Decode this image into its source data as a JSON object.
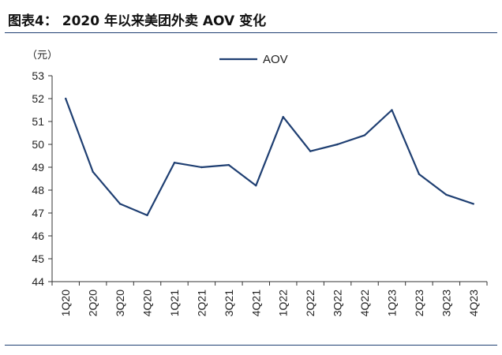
{
  "header": {
    "title": "图表4： 2020 年以来美团外卖 AOV 变化"
  },
  "footer": {
    "source": ""
  },
  "colors": {
    "series": "#1f3f72",
    "axis": "#333333",
    "rule": "#1f3f72"
  },
  "chart_data": {
    "type": "line",
    "title": "图表4： 2020 年以来美团外卖 AOV 变化",
    "xlabel": "",
    "ylabel": "（元）",
    "ylim": [
      44,
      53
    ],
    "yticks": [
      44,
      45,
      46,
      47,
      48,
      49,
      50,
      51,
      52,
      53
    ],
    "grid": false,
    "legend_position": "top-center",
    "categories": [
      "1Q20",
      "2Q20",
      "3Q20",
      "4Q20",
      "1Q21",
      "2Q21",
      "3Q21",
      "4Q21",
      "1Q22",
      "2Q22",
      "3Q22",
      "4Q22",
      "1Q23",
      "2Q23",
      "3Q23",
      "4Q23"
    ],
    "series": [
      {
        "name": "AOV",
        "values": [
          52.0,
          48.8,
          47.4,
          46.9,
          49.2,
          49.0,
          49.1,
          48.2,
          51.2,
          49.7,
          50.0,
          50.4,
          51.5,
          48.7,
          47.8,
          47.4
        ]
      }
    ]
  }
}
